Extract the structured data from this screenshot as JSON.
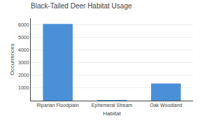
{
  "chart_data": {
    "type": "bar",
    "title": "Black-Tailed Deer Habitat Usage",
    "categories": [
      "Riparian Floodplain",
      "Ephemeral Stream",
      "Oak Woodland"
    ],
    "values": [
      6050,
      30,
      1350
    ],
    "color": "#4a90d9",
    "xlabel": "Habitat",
    "ylabel": "Occurrences",
    "ylim": [
      0,
      6500
    ],
    "yticks": [
      1000,
      2000,
      3000,
      4000,
      5000,
      6000
    ],
    "grid": true
  }
}
